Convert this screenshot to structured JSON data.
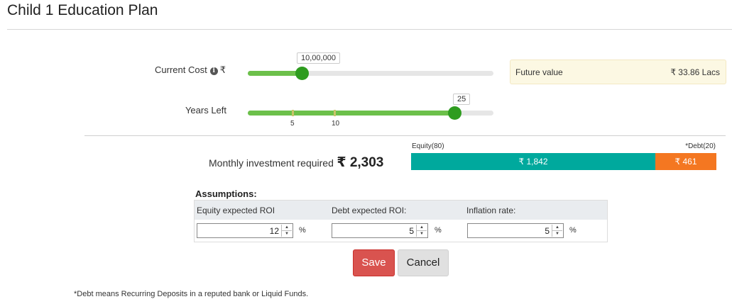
{
  "page": {
    "title": "Child 1 Education Plan"
  },
  "current_cost": {
    "label": "Current Cost",
    "currency_symbol": "₹",
    "value_display": "10,00,000",
    "slider_fraction": 0.22
  },
  "years_left": {
    "label": "Years Left",
    "value_display": "25",
    "tick_labels": [
      "5",
      "10"
    ],
    "slider_fraction": 0.84
  },
  "future_value": {
    "label": "Future value",
    "value": "₹ 33.86 Lacs"
  },
  "monthly": {
    "label": "Monthly investment required",
    "value": "₹ 2,303"
  },
  "split": {
    "equity_caption": "Equity(80)",
    "debt_caption": "*Debt(20)",
    "equity_amount": "₹ 1,842",
    "debt_amount": "₹ 461",
    "equity_fraction": 0.8
  },
  "assumptions": {
    "title": "Assumptions:",
    "equity_label": "Equity expected ROI",
    "debt_label": "Debt expected ROI:",
    "inflation_label": "Inflation rate:",
    "equity_value": "12",
    "debt_value": "5",
    "inflation_value": "5",
    "percent_sign": "%"
  },
  "buttons": {
    "save": "Save",
    "cancel": "Cancel"
  },
  "footnote": "*Debt means Recurring Deposits in a reputed bank or Liquid Funds.",
  "colors": {
    "slider_fill": "#6cc04a",
    "slider_knob": "#2e9c1f",
    "equity": "#00a99d",
    "debt": "#f47721",
    "save_button": "#d9534f"
  }
}
